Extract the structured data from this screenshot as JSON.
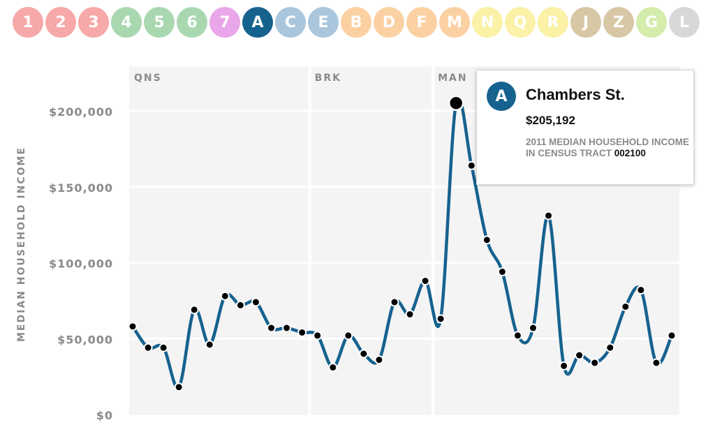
{
  "lines": [
    {
      "label": "1",
      "color": "#f6a9a8"
    },
    {
      "label": "2",
      "color": "#f6a9a8"
    },
    {
      "label": "3",
      "color": "#f6a9a8"
    },
    {
      "label": "4",
      "color": "#a9d8b0"
    },
    {
      "label": "5",
      "color": "#a9d8b0"
    },
    {
      "label": "6",
      "color": "#a9d8b0"
    },
    {
      "label": "7",
      "color": "#e9a6e8"
    },
    {
      "label": "A",
      "color": "#16628f"
    },
    {
      "label": "C",
      "color": "#a9c6dc"
    },
    {
      "label": "E",
      "color": "#a9c6dc"
    },
    {
      "label": "B",
      "color": "#fbd1a3"
    },
    {
      "label": "D",
      "color": "#fbd1a3"
    },
    {
      "label": "F",
      "color": "#fbd1a3"
    },
    {
      "label": "M",
      "color": "#fbd1a3"
    },
    {
      "label": "N",
      "color": "#fbf1a7"
    },
    {
      "label": "Q",
      "color": "#fbf1a7"
    },
    {
      "label": "R",
      "color": "#fbf1a7"
    },
    {
      "label": "J",
      "color": "#d7c7a5"
    },
    {
      "label": "Z",
      "color": "#d7c7a5"
    },
    {
      "label": "G",
      "color": "#d4ecac"
    },
    {
      "label": "L",
      "color": "#d8d8d8"
    }
  ],
  "active_line": "A",
  "tooltip": {
    "badge": "A",
    "station": "Chambers St.",
    "value": "$205,192",
    "description": "2011 Median Household Income in Census Tract",
    "tract": "002100"
  },
  "chart_data": {
    "type": "line",
    "ylabel": "MEDIAN HOUSEHOLD INCOME",
    "ylim": [
      0,
      220000
    ],
    "yticks": [
      0,
      50000,
      100000,
      150000,
      200000
    ],
    "ytick_labels": [
      "$0",
      "$50,000",
      "$100,000",
      "$150,000",
      "$200,000"
    ],
    "grid": true,
    "line_color": "#16628f",
    "regions": [
      {
        "label": "QNS",
        "start_index": 0,
        "end_index": 11
      },
      {
        "label": "BRK",
        "start_index": 12,
        "end_index": 19
      },
      {
        "label": "MAN",
        "start_index": 20,
        "end_index": 34
      }
    ],
    "highlight_index": 21,
    "values": [
      58000,
      44000,
      44000,
      18000,
      69000,
      46000,
      78000,
      72000,
      74000,
      57000,
      57000,
      54000,
      52000,
      31000,
      52000,
      40000,
      36000,
      74000,
      66000,
      88000,
      63000,
      205192,
      164000,
      115000,
      94000,
      52000,
      57000,
      131000,
      32000,
      39000,
      34000,
      44000,
      71000,
      82000,
      34000,
      52000
    ]
  }
}
